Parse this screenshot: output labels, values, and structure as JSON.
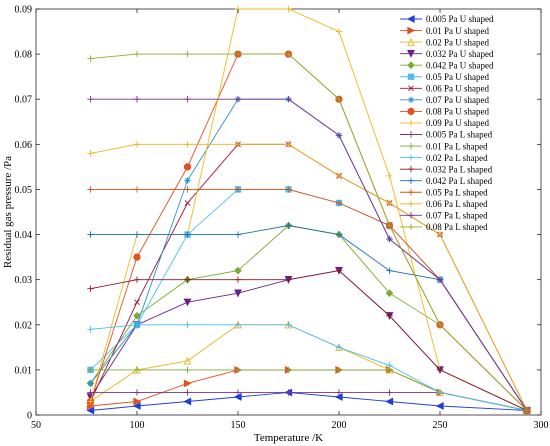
{
  "chart_data": {
    "type": "line",
    "title": "",
    "xlabel": "Temperature /K",
    "ylabel": "Residual gas pressure /Pa",
    "xlim": [
      50,
      300
    ],
    "ylim": [
      0,
      0.09
    ],
    "xticks": [
      50,
      100,
      150,
      200,
      250,
      300
    ],
    "yticks": [
      0,
      0.01,
      0.02,
      0.03,
      0.04,
      0.05,
      0.06,
      0.07,
      0.08,
      0.09
    ],
    "grid": false,
    "legend_position": "top-right",
    "series": [
      {
        "name": "0.005 Pa U shaped",
        "color": "#1f3fd6",
        "marker": "triangle-left",
        "x": [
          77,
          100,
          125,
          150,
          175,
          200,
          225,
          250,
          293
        ],
        "y": [
          0.001,
          0.002,
          0.003,
          0.004,
          0.005,
          0.004,
          0.003,
          0.002,
          0.001
        ]
      },
      {
        "name": "0.01 Pa U shaped",
        "color": "#e0501a",
        "marker": "triangle-right",
        "x": [
          77,
          100,
          125,
          150,
          175,
          200,
          225,
          250,
          293
        ],
        "y": [
          0.002,
          0.003,
          0.007,
          0.01,
          0.01,
          0.01,
          0.01,
          0.005,
          0.001
        ]
      },
      {
        "name": "0.02 Pa U shaped",
        "color": "#e8b420",
        "marker": "triangle-up-open",
        "x": [
          77,
          100,
          125,
          150,
          175,
          200,
          225,
          250,
          293
        ],
        "y": [
          0.003,
          0.01,
          0.012,
          0.02,
          0.02,
          0.015,
          0.01,
          0.005,
          0.001
        ]
      },
      {
        "name": "0.032 Pa U shaped",
        "color": "#6a1f8c",
        "marker": "triangle-down",
        "x": [
          77,
          100,
          125,
          150,
          175,
          200,
          225,
          250,
          293
        ],
        "y": [
          0.004,
          0.02,
          0.025,
          0.027,
          0.03,
          0.032,
          0.022,
          0.01,
          0.001
        ]
      },
      {
        "name": "0.042 Pa U shaped",
        "color": "#77ac30",
        "marker": "diamond",
        "x": [
          77,
          100,
          125,
          150,
          175,
          200,
          225,
          250,
          293
        ],
        "y": [
          0.007,
          0.022,
          0.03,
          0.032,
          0.042,
          0.04,
          0.027,
          0.02,
          0.001
        ]
      },
      {
        "name": "0.05 Pa U shaped",
        "color": "#4dbeee",
        "marker": "square",
        "x": [
          77,
          100,
          125,
          150,
          175,
          200,
          225,
          250,
          293
        ],
        "y": [
          0.01,
          0.02,
          0.04,
          0.05,
          0.05,
          0.047,
          0.042,
          0.03,
          0.001
        ]
      },
      {
        "name": "0.06 Pa U shaped",
        "color": "#a2142f",
        "marker": "x",
        "x": [
          77,
          100,
          125,
          150,
          175,
          200,
          225,
          250,
          293
        ],
        "y": [
          0.003,
          0.025,
          0.047,
          0.06,
          0.06,
          0.053,
          0.047,
          0.04,
          0.001
        ]
      },
      {
        "name": "0.07 Pa U shaped",
        "color": "#2a8fd6",
        "marker": "asterisk",
        "x": [
          77,
          100,
          125,
          150,
          175,
          200,
          225,
          250,
          293
        ],
        "y": [
          0.007,
          0.02,
          0.052,
          0.07,
          0.07,
          0.062,
          0.039,
          0.03,
          0.001
        ]
      },
      {
        "name": "0.08 Pa U shaped",
        "color": "#e25020",
        "marker": "circle",
        "x": [
          77,
          100,
          125,
          150,
          175,
          200,
          225,
          250,
          293
        ],
        "y": [
          0.003,
          0.035,
          0.055,
          0.08,
          0.08,
          0.07,
          0.042,
          0.02,
          0.001
        ]
      },
      {
        "name": "0.09 Pa U shaped",
        "color": "#f2b91c",
        "marker": "plus",
        "x": [
          77,
          100,
          125,
          150,
          175,
          200,
          225,
          250,
          293
        ],
        "y": [
          0.003,
          0.04,
          0.04,
          0.09,
          0.09,
          0.085,
          0.053,
          0.01,
          0.001
        ]
      },
      {
        "name": "0.005 Pa L shaped",
        "color": "#7e2f8e",
        "marker": "plus",
        "x": [
          77,
          100,
          125,
          150,
          175,
          200,
          225,
          250,
          293
        ],
        "y": [
          0.005,
          0.005,
          0.005,
          0.005,
          0.005,
          0.005,
          0.005,
          0.005,
          0.001
        ]
      },
      {
        "name": "0.01 Pa L shaped",
        "color": "#77ac30",
        "marker": "plus",
        "x": [
          77,
          100,
          125,
          150,
          175,
          200,
          225,
          250,
          293
        ],
        "y": [
          0.01,
          0.01,
          0.01,
          0.01,
          0.01,
          0.01,
          0.01,
          0.005,
          0.001
        ]
      },
      {
        "name": "0.02 Pa L shaped",
        "color": "#4dbeee",
        "marker": "plus",
        "x": [
          77,
          100,
          125,
          150,
          175,
          200,
          225,
          250,
          293
        ],
        "y": [
          0.019,
          0.02,
          0.02,
          0.02,
          0.02,
          0.015,
          0.011,
          0.005,
          0.001
        ]
      },
      {
        "name": "0.032 Pa L shaped",
        "color": "#8c1a2b",
        "marker": "plus",
        "x": [
          77,
          100,
          125,
          150,
          175,
          200,
          225,
          250,
          293
        ],
        "y": [
          0.028,
          0.03,
          0.03,
          0.03,
          0.03,
          0.032,
          0.022,
          0.01,
          0.001
        ]
      },
      {
        "name": "0.042 Pa L shaped",
        "color": "#1b6fb8",
        "marker": "plus",
        "x": [
          77,
          100,
          125,
          150,
          175,
          200,
          225,
          250,
          293
        ],
        "y": [
          0.04,
          0.04,
          0.04,
          0.04,
          0.042,
          0.04,
          0.032,
          0.03,
          0.001
        ]
      },
      {
        "name": "0.05 Pa L shaped",
        "color": "#d95319",
        "marker": "plus",
        "x": [
          77,
          100,
          125,
          150,
          175,
          200,
          225,
          250,
          293
        ],
        "y": [
          0.05,
          0.05,
          0.05,
          0.05,
          0.05,
          0.047,
          0.042,
          0.03,
          0.001
        ]
      },
      {
        "name": "0.06 Pa L shaped",
        "color": "#edb120",
        "marker": "plus",
        "x": [
          77,
          100,
          125,
          150,
          175,
          200,
          225,
          250,
          293
        ],
        "y": [
          0.058,
          0.06,
          0.06,
          0.06,
          0.06,
          0.053,
          0.047,
          0.04,
          0.001
        ]
      },
      {
        "name": "0.07 Pa L shaped",
        "color": "#7e2f8e",
        "marker": "plus",
        "x": [
          77,
          100,
          125,
          150,
          175,
          200,
          225,
          250,
          293
        ],
        "y": [
          0.07,
          0.07,
          0.07,
          0.07,
          0.07,
          0.062,
          0.039,
          0.03,
          0.001
        ]
      },
      {
        "name": "0.08 Pa L shaped",
        "color": "#9aa832",
        "marker": "plus",
        "x": [
          77,
          100,
          125,
          150,
          175,
          200,
          225,
          250,
          293
        ],
        "y": [
          0.079,
          0.08,
          0.08,
          0.08,
          0.08,
          0.07,
          0.042,
          0.02,
          0.001
        ]
      }
    ]
  }
}
